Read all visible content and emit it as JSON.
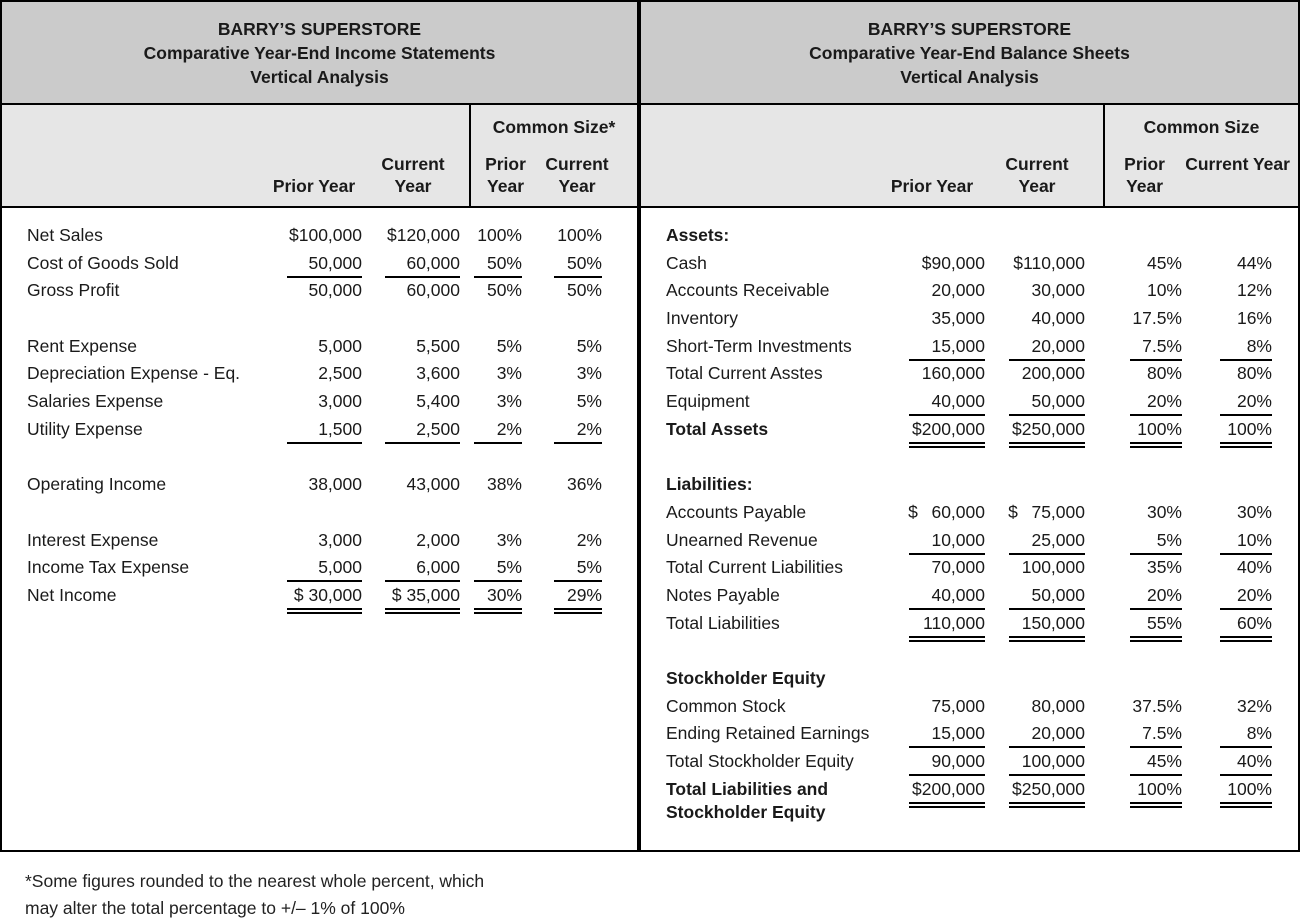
{
  "income_statement": {
    "header": {
      "company": "BARRY’S SUPERSTORE",
      "statement": "Comparative Year-End Income Statements",
      "analysis": "Vertical Analysis"
    },
    "columns": {
      "prior": "Prior Year",
      "current": "Current Year",
      "common_size": "Common Size*",
      "cs_prior": "Prior Year",
      "cs_current": "Current Year"
    },
    "rows": [
      {
        "label": "Net Sales",
        "prior": "$100,000",
        "current": "$120,000",
        "prior_pct": "100%",
        "current_pct": "100%"
      },
      {
        "label": "Cost of Goods Sold",
        "prior": "50,000",
        "current": "60,000",
        "prior_pct": "50%",
        "current_pct": "50%",
        "u": "s"
      },
      {
        "label": "Gross Profit",
        "prior": "50,000",
        "current": "60,000",
        "prior_pct": "50%",
        "current_pct": "50%"
      },
      {
        "spacer": true
      },
      {
        "label": "Rent Expense",
        "prior": "5,000",
        "current": "5,500",
        "prior_pct": "5%",
        "current_pct": "5%"
      },
      {
        "label": "Depreciation Expense - Eq.",
        "prior": "2,500",
        "current": "3,600",
        "prior_pct": "3%",
        "current_pct": "3%"
      },
      {
        "label": "Salaries Expense",
        "prior": "3,000",
        "current": "5,400",
        "prior_pct": "3%",
        "current_pct": "5%"
      },
      {
        "label": "Utility Expense",
        "prior": "1,500",
        "current": "2,500",
        "prior_pct": "2%",
        "current_pct": "2%",
        "u": "s"
      },
      {
        "spacer": true
      },
      {
        "label": "Operating Income",
        "prior": "38,000",
        "current": "43,000",
        "prior_pct": "38%",
        "current_pct": "36%"
      },
      {
        "spacer": true
      },
      {
        "label": "Interest Expense",
        "prior": "3,000",
        "current": "2,000",
        "prior_pct": "3%",
        "current_pct": "2%"
      },
      {
        "label": "Income Tax Expense",
        "prior": "5,000",
        "current": "6,000",
        "prior_pct": "5%",
        "current_pct": "5%",
        "u": "s"
      },
      {
        "label": "Net Income",
        "prior": "$ 30,000",
        "current": "$ 35,000",
        "prior_pct": "30%",
        "current_pct": "29%",
        "u": "d"
      }
    ]
  },
  "balance_sheet": {
    "header": {
      "company": "BARRY’S SUPERSTORE",
      "statement": "Comparative Year-End Balance Sheets",
      "analysis": "Vertical Analysis"
    },
    "columns": {
      "prior": "Prior Year",
      "current": "Current Year",
      "common_size": "Common Size",
      "cs_prior": "Prior Year",
      "cs_current": "Current Year"
    },
    "rows": [
      {
        "label": "Assets:",
        "bold": true
      },
      {
        "label": "Cash",
        "prior": "$90,000",
        "current": "$110,000",
        "prior_pct": "45%",
        "current_pct": "44%"
      },
      {
        "label": "Accounts Receivable",
        "prior": "20,000",
        "current": "30,000",
        "prior_pct": "10%",
        "current_pct": "12%"
      },
      {
        "label": "Inventory",
        "prior": "35,000",
        "current": "40,000",
        "prior_pct": "17.5%",
        "current_pct": "16%"
      },
      {
        "label": "Short-Term Investments",
        "prior": "15,000",
        "current": "20,000",
        "prior_pct": "7.5%",
        "current_pct": "8%",
        "u": "s"
      },
      {
        "label": "Total Current Asstes",
        "prior": "160,000",
        "current": "200,000",
        "prior_pct": "80%",
        "current_pct": "80%"
      },
      {
        "label": "Equipment",
        "prior": "40,000",
        "current": "50,000",
        "prior_pct": "20%",
        "current_pct": "20%",
        "u": "s"
      },
      {
        "label": "Total Assets",
        "bold": true,
        "prior": "$200,000",
        "current": "$250,000",
        "prior_pct": "100%",
        "current_pct": "100%",
        "u": "d"
      },
      {
        "spacer": true
      },
      {
        "label": "Liabilities:",
        "bold": true
      },
      {
        "label": "Accounts Payable",
        "prior": "$  60,000",
        "current": "$  75,000",
        "prior_pct": "30%",
        "current_pct": "30%"
      },
      {
        "label": "Unearned Revenue",
        "prior": "10,000",
        "current": "25,000",
        "prior_pct": "5%",
        "current_pct": "10%",
        "u": "s"
      },
      {
        "label": "Total Current Liabilities",
        "prior": "70,000",
        "current": "100,000",
        "prior_pct": "35%",
        "current_pct": "40%"
      },
      {
        "label": "Notes Payable",
        "prior": "40,000",
        "current": "50,000",
        "prior_pct": "20%",
        "current_pct": "20%",
        "u": "s"
      },
      {
        "label": "Total Liabilities",
        "prior": "110,000",
        "current": "150,000",
        "prior_pct": "55%",
        "current_pct": "60%",
        "u": "d"
      },
      {
        "spacer": true
      },
      {
        "label": "Stockholder Equity",
        "bold": true
      },
      {
        "label": "Common Stock",
        "prior": "75,000",
        "current": "80,000",
        "prior_pct": "37.5%",
        "current_pct": "32%"
      },
      {
        "label": "Ending Retained Earnings",
        "prior": "15,000",
        "current": "20,000",
        "prior_pct": "7.5%",
        "current_pct": "8%",
        "u": "s"
      },
      {
        "label": "Total Stockholder Equity",
        "prior": "90,000",
        "current": "100,000",
        "prior_pct": "45%",
        "current_pct": "40%",
        "u": "s"
      },
      {
        "label": "Total Liabilities and Stockholder Equity",
        "bold": true,
        "tall": true,
        "prior": "$200,000",
        "current": "$250,000",
        "prior_pct": "100%",
        "current_pct": "100%",
        "u": "d"
      }
    ]
  },
  "footnote": {
    "line1": "*Some figures rounded to the nearest whole percent, which",
    "line2": "may alter the total percentage to +/– 1% of 100%"
  },
  "colors": {
    "title_band": "#cbcbcb",
    "header_band": "#e6e6e6",
    "border": "#000000",
    "text": "#1a1a1a",
    "background": "#ffffff"
  }
}
